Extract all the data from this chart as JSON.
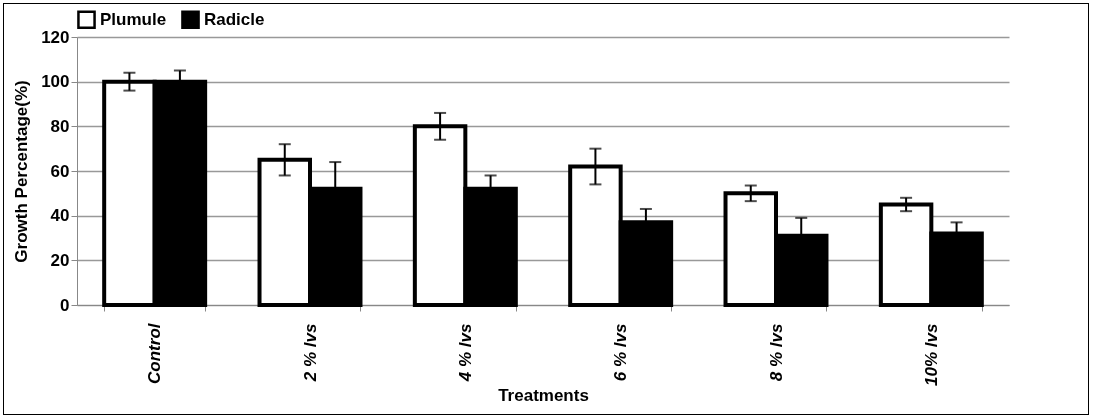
{
  "chart_data": {
    "type": "bar",
    "xlabel": "Treatments",
    "ylabel": "Growth Percentage(%)",
    "categories": [
      "Control",
      "2 % lvs",
      "4 % lvs",
      "6  % lvs",
      "8 % lvs",
      "10% lvs"
    ],
    "series": [
      {
        "name": "Plumule",
        "color": "#ffffff",
        "values": [
          100,
          65,
          80,
          62,
          50,
          45
        ],
        "errors": [
          4,
          7,
          6,
          8,
          3.5,
          3
        ]
      },
      {
        "name": "Radicle",
        "color": "#000000",
        "values": [
          100,
          52,
          52,
          37,
          31,
          32
        ],
        "errors": [
          5,
          12,
          6,
          6,
          8,
          5
        ]
      }
    ],
    "ylim": [
      0,
      120
    ],
    "yticks": [
      0,
      20,
      40,
      60,
      80,
      100,
      120
    ],
    "grid": "y",
    "legend": "top"
  }
}
